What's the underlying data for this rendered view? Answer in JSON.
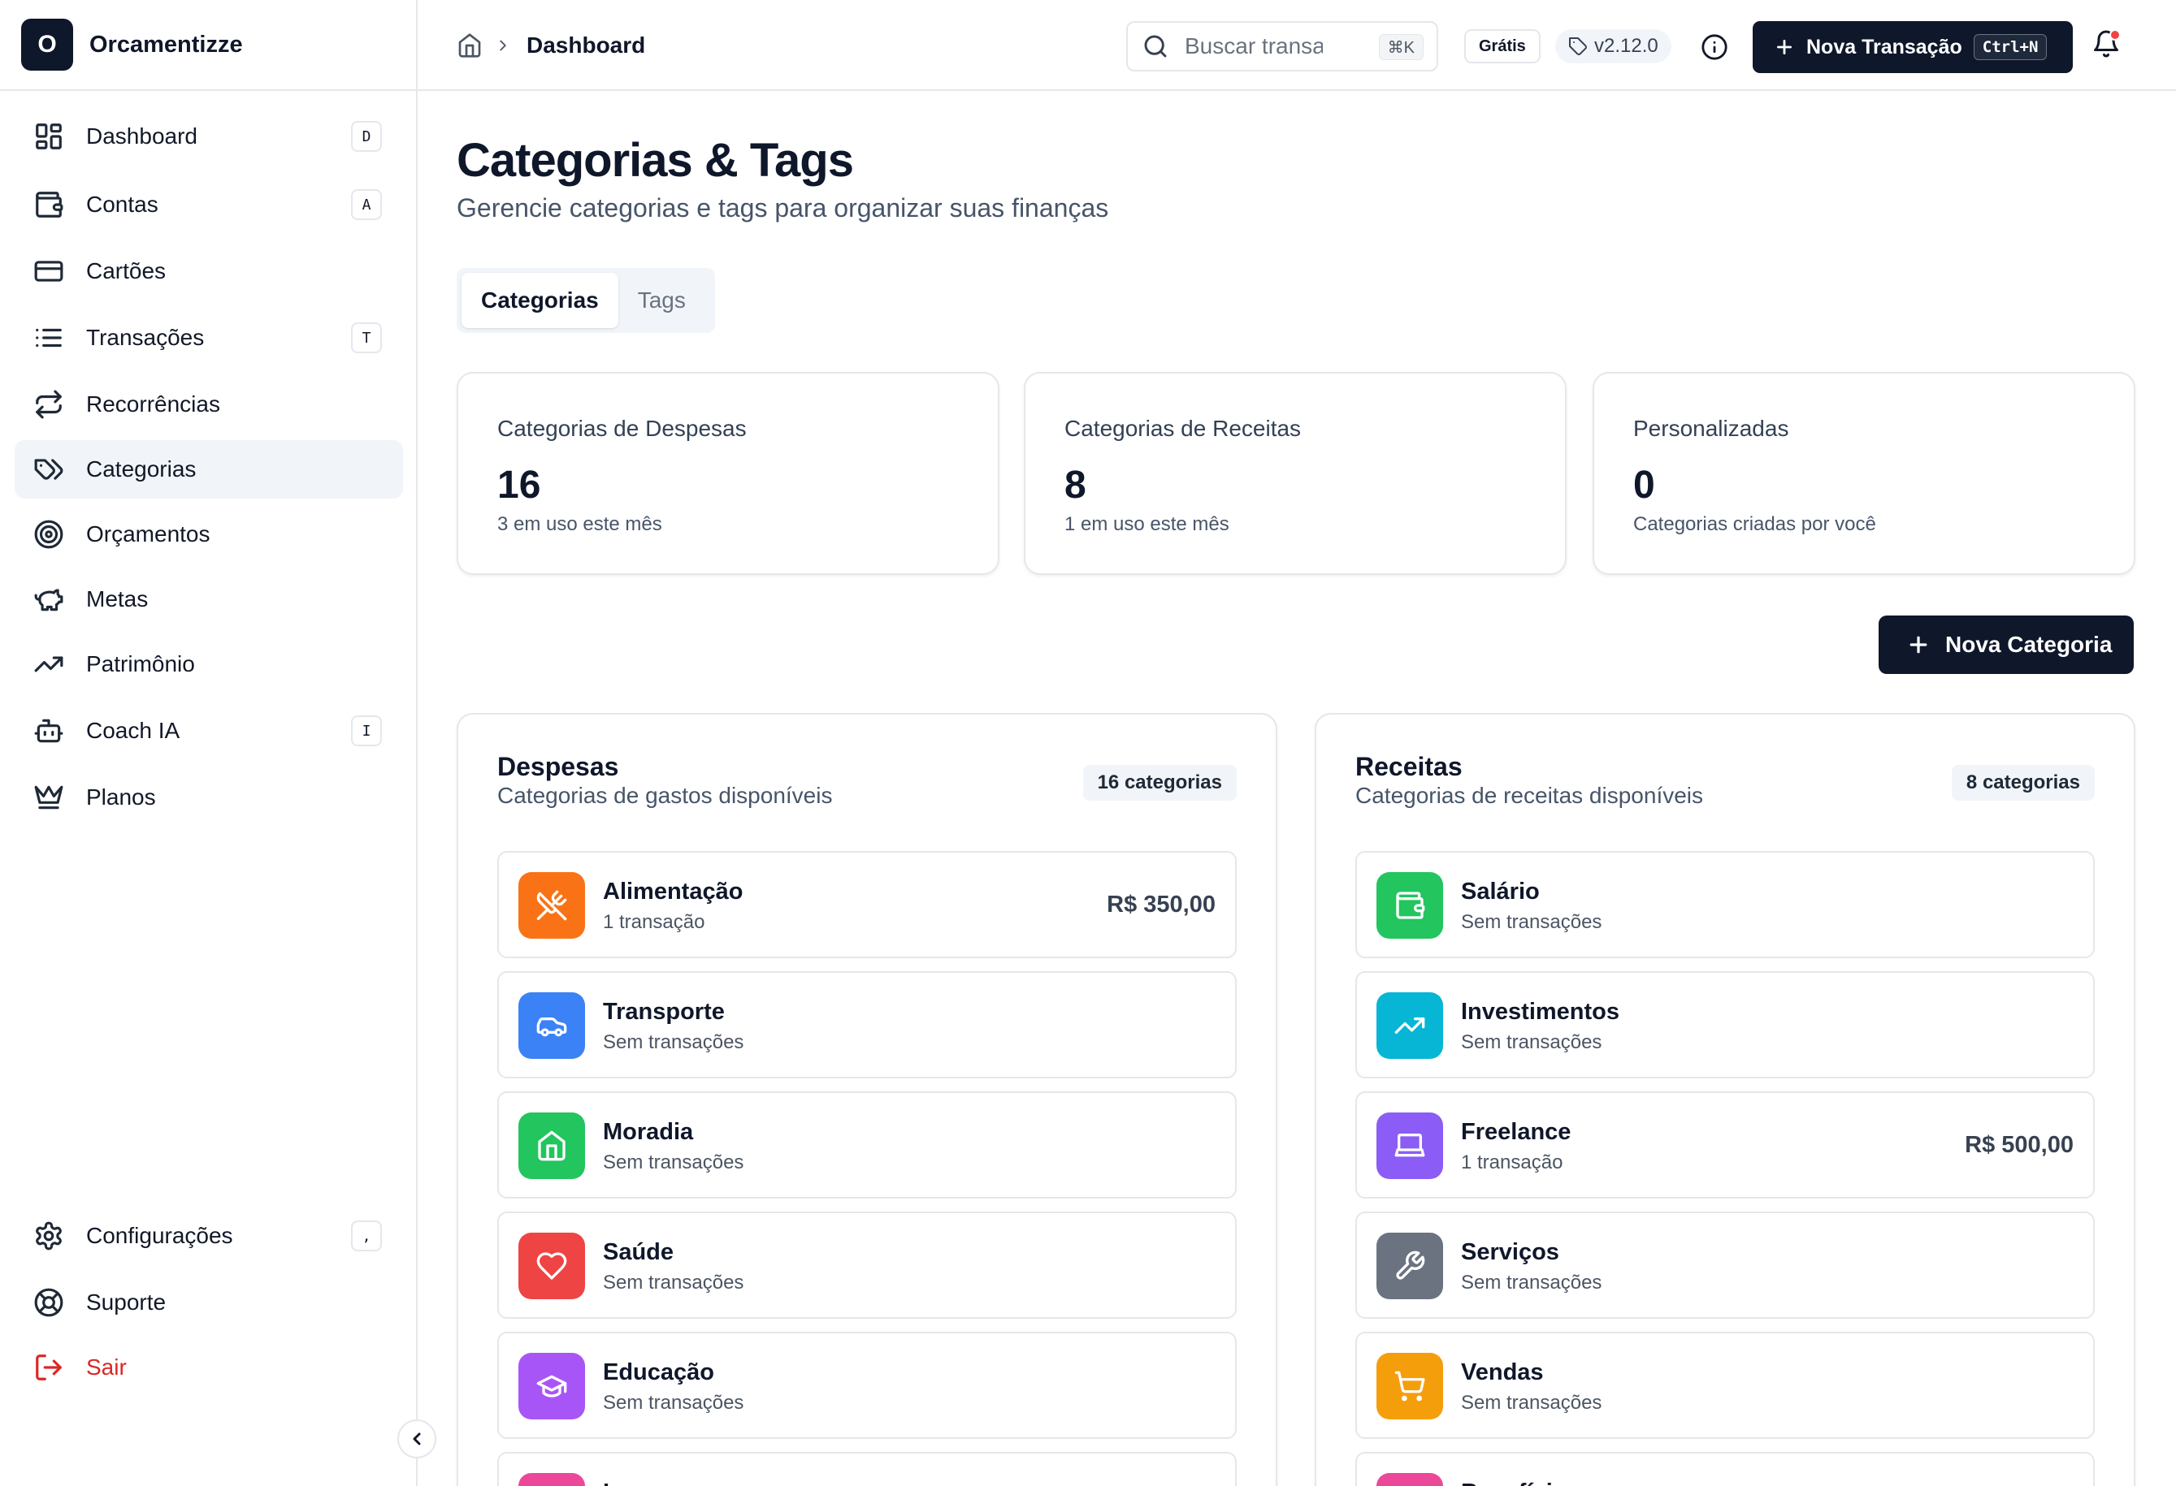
{
  "brand": {
    "logo_letter": "O",
    "name": "Orcamentizze"
  },
  "sidebar": {
    "items": [
      {
        "label": "Dashboard",
        "icon": "layout-dashboard-icon",
        "shortcut": "D"
      },
      {
        "label": "Contas",
        "icon": "wallet-icon",
        "shortcut": "A"
      },
      {
        "label": "Cartões",
        "icon": "credit-card-icon",
        "shortcut": ""
      },
      {
        "label": "Transações",
        "icon": "list-icon",
        "shortcut": "T"
      },
      {
        "label": "Recorrências",
        "icon": "repeat-icon",
        "shortcut": ""
      },
      {
        "label": "Categorias",
        "icon": "tags-icon",
        "shortcut": "",
        "active": true
      },
      {
        "label": "Orçamentos",
        "icon": "target-icon",
        "shortcut": ""
      },
      {
        "label": "Metas",
        "icon": "piggy-bank-icon",
        "shortcut": ""
      },
      {
        "label": "Patrimônio",
        "icon": "trending-up-icon",
        "shortcut": ""
      },
      {
        "label": "Coach IA",
        "icon": "bot-icon",
        "shortcut": "I"
      },
      {
        "label": "Planos",
        "icon": "crown-icon",
        "shortcut": ""
      }
    ],
    "bottom": [
      {
        "label": "Configurações",
        "icon": "settings-icon",
        "shortcut": ","
      },
      {
        "label": "Suporte",
        "icon": "life-buoy-icon",
        "shortcut": ""
      },
      {
        "label": "Sair",
        "icon": "log-out-icon",
        "shortcut": ""
      }
    ]
  },
  "header": {
    "breadcrumb": "Dashboard",
    "search_placeholder": "Buscar transações",
    "search_shortcut": "⌘K",
    "plan_badge": "Grátis",
    "version": "v2.12.0",
    "new_transaction_label": "Nova Transação",
    "new_transaction_shortcut": "Ctrl+N"
  },
  "page": {
    "title": "Categorias & Tags",
    "subtitle": "Gerencie categorias e tags para organizar suas finanças",
    "tabs": [
      {
        "label": "Categorias",
        "active": true
      },
      {
        "label": "Tags",
        "active": false
      }
    ]
  },
  "stats": [
    {
      "title": "Categorias de Despesas",
      "value": "16",
      "desc": "3 em uso este mês"
    },
    {
      "title": "Categorias de Receitas",
      "value": "8",
      "desc": "1 em uso este mês"
    },
    {
      "title": "Personalizadas",
      "value": "0",
      "desc": "Categorias criadas por você"
    }
  ],
  "new_category_label": "Nova Categoria",
  "expenses": {
    "title": "Despesas",
    "subtitle": "Categorias de gastos disponíveis",
    "badge": "16 categorias",
    "items": [
      {
        "name": "Alimentação",
        "count": "1 transação",
        "amount": "R$ 350,00",
        "color": "#f97316",
        "icon": "utensils-icon"
      },
      {
        "name": "Transporte",
        "count": "Sem transações",
        "amount": "",
        "color": "#3b82f6",
        "icon": "car-icon"
      },
      {
        "name": "Moradia",
        "count": "Sem transações",
        "amount": "",
        "color": "#22c55e",
        "icon": "home-icon"
      },
      {
        "name": "Saúde",
        "count": "Sem transações",
        "amount": "",
        "color": "#ef4444",
        "icon": "heart-icon"
      },
      {
        "name": "Educação",
        "count": "Sem transações",
        "amount": "",
        "color": "#a855f7",
        "icon": "graduation-cap-icon"
      },
      {
        "name": "Lazer",
        "count": "",
        "amount": "",
        "color": "#ec4899",
        "icon": "gamepad-icon"
      }
    ]
  },
  "income": {
    "title": "Receitas",
    "subtitle": "Categorias de receitas disponíveis",
    "badge": "8 categorias",
    "items": [
      {
        "name": "Salário",
        "count": "Sem transações",
        "amount": "",
        "color": "#22c55e",
        "icon": "wallet-icon"
      },
      {
        "name": "Investimentos",
        "count": "Sem transações",
        "amount": "",
        "color": "#06b6d4",
        "icon": "trending-up-icon"
      },
      {
        "name": "Freelance",
        "count": "1 transação",
        "amount": "R$ 500,00",
        "color": "#8b5cf6",
        "icon": "laptop-icon"
      },
      {
        "name": "Serviços",
        "count": "Sem transações",
        "amount": "",
        "color": "#6b7280",
        "icon": "wrench-icon"
      },
      {
        "name": "Vendas",
        "count": "Sem transações",
        "amount": "",
        "color": "#f59e0b",
        "icon": "shopping-cart-icon"
      },
      {
        "name": "Benefícios",
        "count": "",
        "amount": "",
        "color": "#ec4899",
        "icon": "gift-icon"
      }
    ]
  }
}
